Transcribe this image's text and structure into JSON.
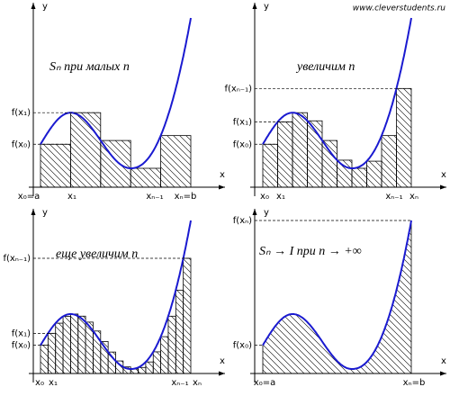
{
  "watermark": "www.cleverstudents.ru",
  "panels": [
    {
      "caption": "Sₙ   при   малых   n",
      "y_axis": "y",
      "x_axis": "x",
      "y_labels": [
        "f(x₁)",
        "f(x₀)"
      ],
      "x_labels": [
        "x₀=a",
        "x₁",
        "xₙ₋₁",
        "xₙ=b"
      ]
    },
    {
      "caption": "увеличим   n",
      "y_axis": "y",
      "x_axis": "x",
      "y_labels": [
        "f(xₙ₋₁)",
        "f(x₁)",
        "f(x₀)"
      ],
      "x_labels": [
        "x₀",
        "x₁",
        "xₙ₋₁",
        "xₙ"
      ]
    },
    {
      "caption": "еще   увеличим   n",
      "y_axis": "y",
      "x_axis": "x",
      "y_labels": [
        "f(xₙ₋₁)",
        "f(x₁)",
        "f(x₀)"
      ],
      "x_labels": [
        "x₀",
        "x₁",
        "xₙ₋₁",
        "xₙ"
      ]
    },
    {
      "caption": "Sₙ → I   при   n → +∞",
      "y_axis": "y",
      "x_axis": "x",
      "y_labels": [
        "f(xₙ)",
        "f(x₀)"
      ],
      "x_labels": [
        "x₀=a",
        "xₙ=b"
      ]
    }
  ]
}
